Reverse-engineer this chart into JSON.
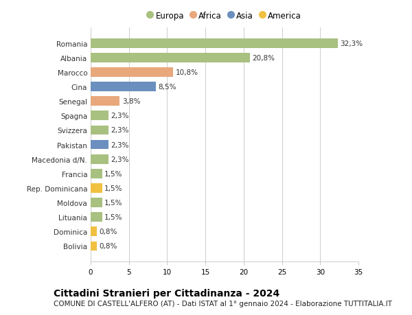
{
  "categories": [
    "Romania",
    "Albania",
    "Marocco",
    "Cina",
    "Senegal",
    "Spagna",
    "Svizzera",
    "Pakistan",
    "Macedonia d/N.",
    "Francia",
    "Rep. Dominicana",
    "Moldova",
    "Lituania",
    "Dominica",
    "Bolivia"
  ],
  "values": [
    32.3,
    20.8,
    10.8,
    8.5,
    3.8,
    2.3,
    2.3,
    2.3,
    2.3,
    1.5,
    1.5,
    1.5,
    1.5,
    0.8,
    0.8
  ],
  "labels": [
    "32,3%",
    "20,8%",
    "10,8%",
    "8,5%",
    "3,8%",
    "2,3%",
    "2,3%",
    "2,3%",
    "2,3%",
    "1,5%",
    "1,5%",
    "1,5%",
    "1,5%",
    "0,8%",
    "0,8%"
  ],
  "continents": [
    "Europa",
    "Europa",
    "Africa",
    "Asia",
    "Africa",
    "Europa",
    "Europa",
    "Asia",
    "Europa",
    "Europa",
    "America",
    "Europa",
    "Europa",
    "America",
    "America"
  ],
  "colors": {
    "Europa": "#a8c080",
    "Africa": "#e8a87c",
    "Asia": "#6b8fbf",
    "America": "#f0c040"
  },
  "legend_order": [
    "Europa",
    "Africa",
    "Asia",
    "America"
  ],
  "xlim": [
    0,
    35
  ],
  "xticks": [
    0,
    5,
    10,
    15,
    20,
    25,
    30,
    35
  ],
  "title": "Cittadini Stranieri per Cittadinanza - 2024",
  "subtitle": "COMUNE DI CASTELL'ALFERO (AT) - Dati ISTAT al 1° gennaio 2024 - Elaborazione TUTTITALIA.IT",
  "background_color": "#ffffff",
  "grid_color": "#cccccc",
  "bar_height": 0.65,
  "title_fontsize": 10,
  "subtitle_fontsize": 7.5,
  "label_fontsize": 7.5,
  "tick_fontsize": 7.5,
  "legend_fontsize": 8.5
}
